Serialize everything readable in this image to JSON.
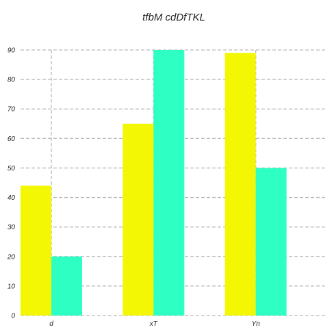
{
  "chart_data": {
    "type": "bar",
    "title": "tfbM cdDfTKL",
    "xlabel": "",
    "ylabel": "",
    "categories": [
      "d",
      "xT",
      "Yn"
    ],
    "series": [
      {
        "color": "#f3f703",
        "values": [
          44,
          65,
          89
        ]
      },
      {
        "color": "#2effc3",
        "values": [
          20,
          90,
          50
        ]
      }
    ],
    "ylim": [
      0,
      90
    ],
    "yticks": [
      0,
      10,
      20,
      30,
      40,
      50,
      60,
      70,
      80,
      90
    ],
    "grid": true
  }
}
